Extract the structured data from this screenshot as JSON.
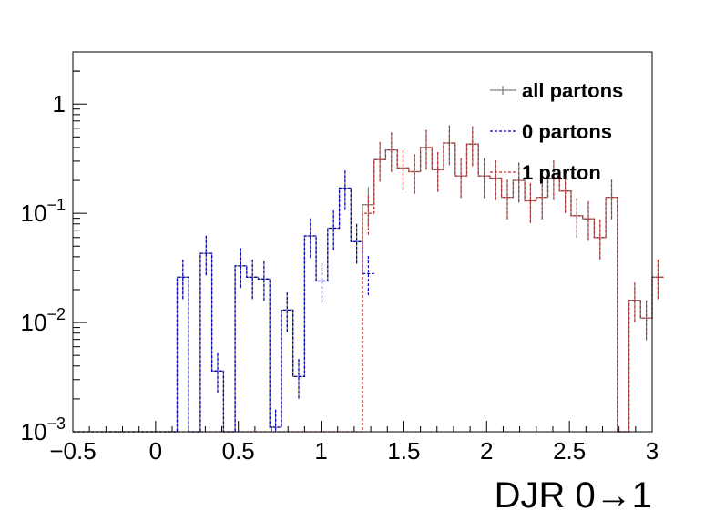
{
  "chart_data": {
    "type": "histogram-step",
    "xlabel": "DJR 0→1",
    "ylabel": "",
    "xlim": [
      -0.5,
      3.0
    ],
    "ylim": [
      0.001,
      3.0
    ],
    "yscale": "log",
    "grid": false,
    "legend_position": "top-right",
    "x_ticks": [
      -0.5,
      0,
      0.5,
      1,
      1.5,
      2,
      2.5,
      3
    ],
    "x_tick_labels": [
      "−0.5",
      "0",
      "0.5",
      "1",
      "1.5",
      "2",
      "2.5",
      "3"
    ],
    "y_ticks": [
      {
        "value": 0.001,
        "base": "10",
        "exp": "−3"
      },
      {
        "value": 0.01,
        "base": "10",
        "exp": "−2"
      },
      {
        "value": 0.1,
        "base": "10",
        "exp": "−1"
      },
      {
        "value": 1,
        "base": "1",
        "exp": ""
      }
    ],
    "bin_edges_start": -0.5,
    "bin_width": 0.07,
    "series": [
      {
        "name": "all partons",
        "color": "#808080",
        "dash": "",
        "values": [
          0,
          0,
          0,
          0,
          0,
          0,
          0,
          0,
          0,
          0.026,
          0,
          0.043,
          0.0036,
          0,
          0.033,
          0.026,
          0.025,
          0.0011,
          0.013,
          0.0032,
          0.062,
          0.024,
          0.073,
          0.17,
          0.055,
          0.12,
          0.31,
          0.38,
          0.26,
          0.24,
          0.4,
          0.25,
          0.44,
          0.22,
          0.43,
          0.22,
          0.21,
          0.14,
          0.2,
          0.13,
          0.14,
          0.21,
          0.16,
          0.095,
          0.089,
          0.06,
          0.14,
          0,
          0.016,
          0.011,
          0.026
        ]
      },
      {
        "name": "0 partons",
        "color": "#0000cc",
        "dash": "3,2",
        "values": [
          0,
          0,
          0,
          0,
          0,
          0,
          0,
          0,
          0,
          0.026,
          0,
          0.043,
          0.0036,
          0,
          0.033,
          0.026,
          0.025,
          0.0011,
          0.013,
          0.0032,
          0.062,
          0.024,
          0.073,
          0.17,
          0.055,
          0.028
        ]
      },
      {
        "name": "1 parton",
        "color": "#c03030",
        "dash": "3,2",
        "values": [
          0,
          0,
          0,
          0,
          0,
          0,
          0,
          0,
          0,
          0,
          0,
          0,
          0,
          0,
          0,
          0,
          0,
          0,
          0,
          0,
          0,
          0,
          0,
          0,
          0,
          0.1,
          0.31,
          0.38,
          0.26,
          0.24,
          0.4,
          0.25,
          0.44,
          0.22,
          0.43,
          0.22,
          0.21,
          0.14,
          0.2,
          0.13,
          0.14,
          0.21,
          0.16,
          0.095,
          0.089,
          0.06,
          0.14,
          0,
          0.016,
          0.011,
          0.026
        ]
      }
    ]
  }
}
